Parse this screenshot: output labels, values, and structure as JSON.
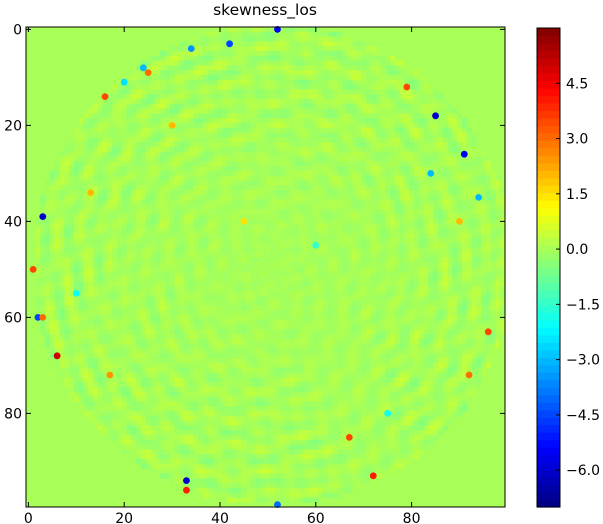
{
  "chart_data": {
    "type": "heatmap",
    "title": "skewness_los",
    "xlabel": "",
    "ylabel": "",
    "grid": false,
    "image_extent": {
      "x": [
        -0.5,
        99.5
      ],
      "y": [
        99.5,
        -0.5
      ]
    },
    "x_ticks": [
      0,
      20,
      40,
      60,
      80
    ],
    "y_ticks": [
      0,
      20,
      40,
      60,
      80
    ],
    "background_value": 0.0,
    "disk": {
      "center": [
        51,
        49
      ],
      "radius": 50
    },
    "colormap": "jet",
    "colorbar": {
      "vmin": -7.0,
      "vmax": 6.0,
      "ticks": [
        -6.0,
        -4.5,
        -3.0,
        -1.5,
        0.0,
        1.5,
        3.0,
        4.5
      ],
      "tick_labels": [
        "−6.0",
        "−4.5",
        "−3.0",
        "−1.5",
        "0.0",
        "1.5",
        "3.0",
        "4.5"
      ]
    },
    "hot_spots": [
      {
        "x": 52,
        "y": 0,
        "value": -5.5
      },
      {
        "x": 42,
        "y": 3,
        "value": -4.5
      },
      {
        "x": 34,
        "y": 4,
        "value": -3.5
      },
      {
        "x": 24,
        "y": 8,
        "value": -3.0
      },
      {
        "x": 25,
        "y": 9,
        "value": 3.0
      },
      {
        "x": 20,
        "y": 11,
        "value": -2.5
      },
      {
        "x": 16,
        "y": 14,
        "value": 3.5
      },
      {
        "x": 79,
        "y": 12,
        "value": 3.5
      },
      {
        "x": 85,
        "y": 18,
        "value": -6.0
      },
      {
        "x": 91,
        "y": 26,
        "value": -5.5
      },
      {
        "x": 84,
        "y": 30,
        "value": -3.0
      },
      {
        "x": 13,
        "y": 34,
        "value": 2.0
      },
      {
        "x": 94,
        "y": 35,
        "value": -3.0
      },
      {
        "x": 3,
        "y": 39,
        "value": -6.0
      },
      {
        "x": 1,
        "y": 50,
        "value": 3.5
      },
      {
        "x": 2,
        "y": 60,
        "value": -4.5
      },
      {
        "x": 3,
        "y": 60,
        "value": 3.0
      },
      {
        "x": 6,
        "y": 68,
        "value": 5.0
      },
      {
        "x": 96,
        "y": 63,
        "value": 3.5
      },
      {
        "x": 17,
        "y": 72,
        "value": 2.5
      },
      {
        "x": 92,
        "y": 72,
        "value": 3.0
      },
      {
        "x": 67,
        "y": 85,
        "value": 3.5
      },
      {
        "x": 72,
        "y": 93,
        "value": 4.0
      },
      {
        "x": 33,
        "y": 94,
        "value": -6.0
      },
      {
        "x": 33,
        "y": 96,
        "value": 4.0
      },
      {
        "x": 52,
        "y": 99,
        "value": -4.0
      },
      {
        "x": 30,
        "y": 20,
        "value": 2.0
      },
      {
        "x": 60,
        "y": 45,
        "value": -1.5
      },
      {
        "x": 45,
        "y": 40,
        "value": 1.5
      },
      {
        "x": 10,
        "y": 55,
        "value": -2.0
      },
      {
        "x": 90,
        "y": 40,
        "value": 2.0
      },
      {
        "x": 75,
        "y": 80,
        "value": -2.0
      }
    ]
  }
}
